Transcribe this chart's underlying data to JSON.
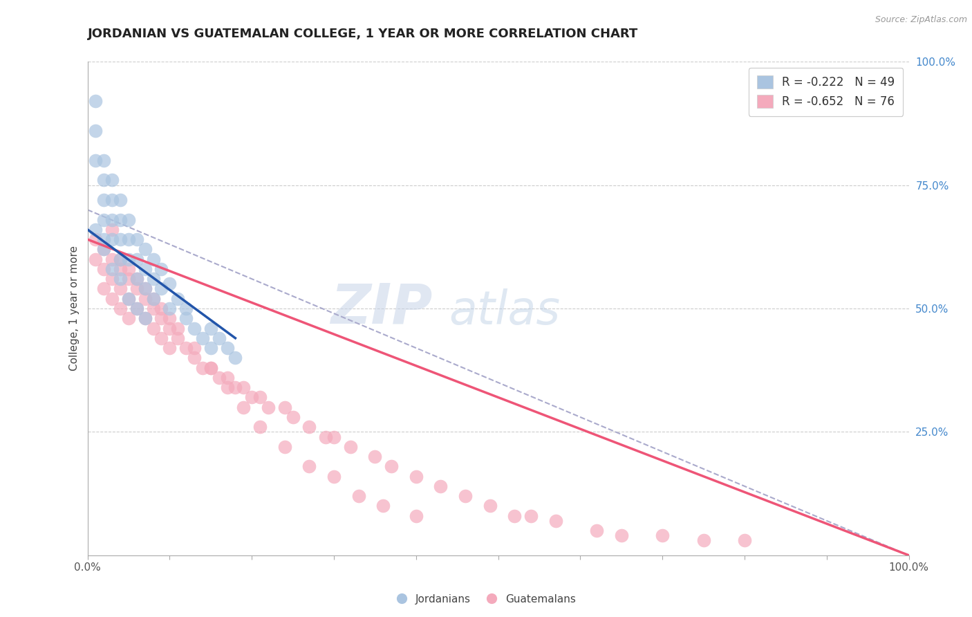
{
  "title": "JORDANIAN VS GUATEMALAN COLLEGE, 1 YEAR OR MORE CORRELATION CHART",
  "source_text": "Source: ZipAtlas.com",
  "ylabel": "College, 1 year or more",
  "xlim": [
    0,
    1
  ],
  "ylim": [
    0,
    1
  ],
  "xtick_labels": [
    "0.0%",
    "",
    "",
    "",
    "",
    "",
    "",
    "",
    "",
    "",
    "100.0%"
  ],
  "xtick_vals": [
    0.0,
    0.1,
    0.2,
    0.3,
    0.4,
    0.5,
    0.6,
    0.7,
    0.8,
    0.9,
    1.0
  ],
  "ytick_vals_right": [
    0.25,
    0.5,
    0.75,
    1.0
  ],
  "ytick_labels_right": [
    "25.0%",
    "50.0%",
    "75.0%",
    "100.0%"
  ],
  "hgrid_vals": [
    0.25,
    0.5,
    0.75,
    1.0
  ],
  "gridline_color": "#cccccc",
  "background_color": "#ffffff",
  "jordanian_color": "#aac4e0",
  "guatemalan_color": "#f4aabc",
  "jordanian_line_color": "#2255aa",
  "guatemalan_line_color": "#ee5577",
  "dashed_line_color": "#aaaacc",
  "legend_R1": "R = -0.222",
  "legend_N1": "N = 49",
  "legend_R2": "R = -0.652",
  "legend_N2": "N = 76",
  "watermark_zip": "ZIP",
  "watermark_atlas": "atlas",
  "watermark_zip_color": "#c8d4e8",
  "watermark_atlas_color": "#b8cce4",
  "jordanian_x": [
    0.01,
    0.01,
    0.01,
    0.02,
    0.02,
    0.02,
    0.02,
    0.02,
    0.03,
    0.03,
    0.03,
    0.03,
    0.04,
    0.04,
    0.04,
    0.04,
    0.05,
    0.05,
    0.05,
    0.06,
    0.06,
    0.06,
    0.07,
    0.07,
    0.07,
    0.08,
    0.08,
    0.08,
    0.09,
    0.09,
    0.1,
    0.1,
    0.11,
    0.12,
    0.12,
    0.13,
    0.14,
    0.15,
    0.15,
    0.16,
    0.17,
    0.18,
    0.01,
    0.02,
    0.03,
    0.04,
    0.05,
    0.06,
    0.07
  ],
  "jordanian_y": [
    0.92,
    0.86,
    0.8,
    0.8,
    0.76,
    0.72,
    0.68,
    0.64,
    0.76,
    0.72,
    0.68,
    0.64,
    0.72,
    0.68,
    0.64,
    0.6,
    0.68,
    0.64,
    0.6,
    0.64,
    0.6,
    0.56,
    0.62,
    0.58,
    0.54,
    0.6,
    0.56,
    0.52,
    0.58,
    0.54,
    0.55,
    0.5,
    0.52,
    0.48,
    0.5,
    0.46,
    0.44,
    0.42,
    0.46,
    0.44,
    0.42,
    0.4,
    0.66,
    0.62,
    0.58,
    0.56,
    0.52,
    0.5,
    0.48
  ],
  "guatemalan_x": [
    0.01,
    0.01,
    0.02,
    0.02,
    0.02,
    0.03,
    0.03,
    0.03,
    0.04,
    0.04,
    0.04,
    0.05,
    0.05,
    0.05,
    0.06,
    0.06,
    0.07,
    0.07,
    0.08,
    0.08,
    0.09,
    0.09,
    0.1,
    0.1,
    0.11,
    0.12,
    0.13,
    0.14,
    0.15,
    0.16,
    0.17,
    0.18,
    0.19,
    0.2,
    0.21,
    0.22,
    0.24,
    0.25,
    0.27,
    0.29,
    0.3,
    0.32,
    0.35,
    0.37,
    0.4,
    0.43,
    0.46,
    0.49,
    0.52,
    0.54,
    0.57,
    0.62,
    0.65,
    0.7,
    0.75,
    0.8,
    0.03,
    0.04,
    0.05,
    0.06,
    0.07,
    0.08,
    0.09,
    0.1,
    0.11,
    0.13,
    0.15,
    0.17,
    0.19,
    0.21,
    0.24,
    0.27,
    0.3,
    0.33,
    0.36,
    0.4
  ],
  "guatemalan_y": [
    0.64,
    0.6,
    0.62,
    0.58,
    0.54,
    0.6,
    0.56,
    0.52,
    0.58,
    0.54,
    0.5,
    0.56,
    0.52,
    0.48,
    0.54,
    0.5,
    0.52,
    0.48,
    0.5,
    0.46,
    0.48,
    0.44,
    0.46,
    0.42,
    0.44,
    0.42,
    0.4,
    0.38,
    0.38,
    0.36,
    0.36,
    0.34,
    0.34,
    0.32,
    0.32,
    0.3,
    0.3,
    0.28,
    0.26,
    0.24,
    0.24,
    0.22,
    0.2,
    0.18,
    0.16,
    0.14,
    0.12,
    0.1,
    0.08,
    0.08,
    0.07,
    0.05,
    0.04,
    0.04,
    0.03,
    0.03,
    0.66,
    0.6,
    0.58,
    0.56,
    0.54,
    0.52,
    0.5,
    0.48,
    0.46,
    0.42,
    0.38,
    0.34,
    0.3,
    0.26,
    0.22,
    0.18,
    0.16,
    0.12,
    0.1,
    0.08
  ],
  "jordanian_line_x": [
    0.0,
    0.18
  ],
  "jordanian_line_y": [
    0.66,
    0.44
  ],
  "guatemalan_line_x": [
    0.0,
    1.0
  ],
  "guatemalan_line_y": [
    0.64,
    0.0
  ],
  "dashed_line_x": [
    0.0,
    1.0
  ],
  "dashed_line_y": [
    0.7,
    0.0
  ]
}
